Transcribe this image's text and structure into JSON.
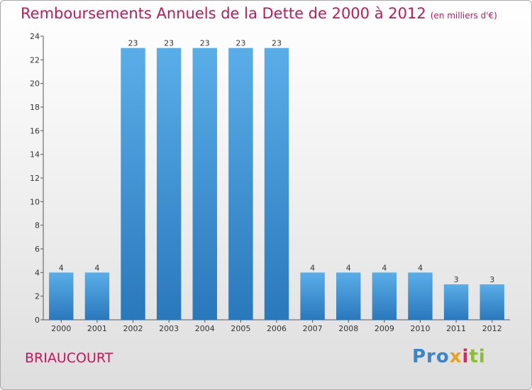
{
  "chart_data": {
    "type": "bar",
    "title": "Remboursements Annuels de la Dette de 2000 à 2012",
    "subtitle": "(en milliers d'€)",
    "categories": [
      "2000",
      "2001",
      "2002",
      "2003",
      "2004",
      "2005",
      "2006",
      "2007",
      "2008",
      "2009",
      "2010",
      "2011",
      "2012"
    ],
    "values": [
      4,
      4,
      23,
      23,
      23,
      23,
      23,
      4,
      4,
      4,
      4,
      3,
      3
    ],
    "y_ticks": [
      0,
      2,
      4,
      6,
      8,
      10,
      12,
      14,
      16,
      18,
      20,
      22,
      24
    ],
    "ylim": [
      0,
      24
    ],
    "grid": false,
    "bar_color": "#3d96dc"
  },
  "footer": {
    "commune": "BRIAUCOURT",
    "logo": {
      "p1": "Pro",
      "p2": "x",
      "p3": "i",
      "p4": "ti"
    }
  }
}
